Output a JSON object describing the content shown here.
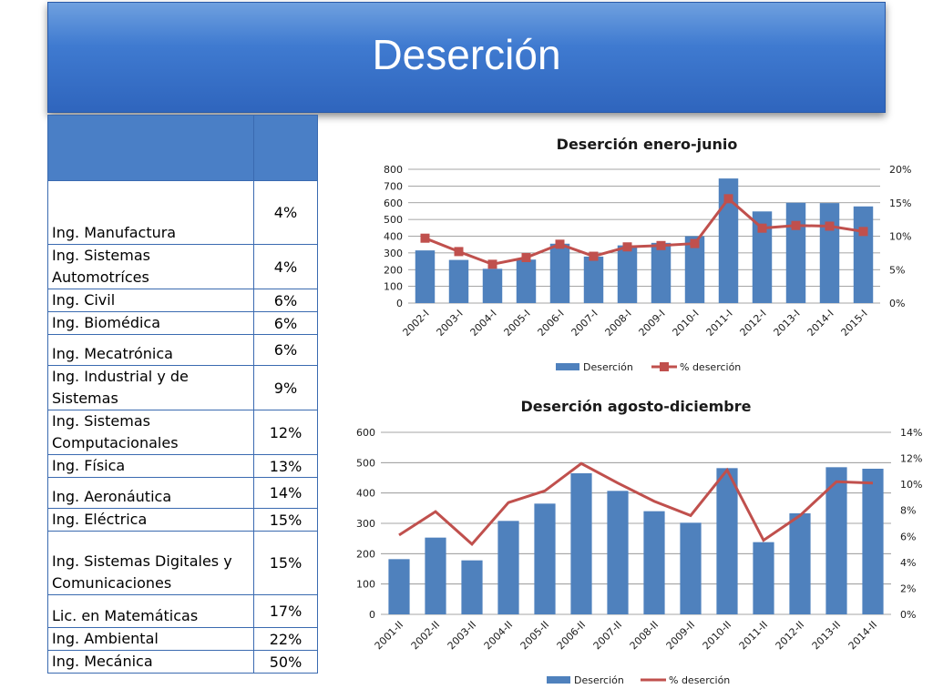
{
  "slide": {
    "title": "Deserción"
  },
  "table": {
    "header": [
      "",
      ""
    ],
    "rows": [
      {
        "name": "Ing. Manufactura",
        "pct": "4%"
      },
      {
        "name": "Ing. Sistemas Automotríces",
        "pct": "4%"
      },
      {
        "name": "Ing. Civil",
        "pct": "6%"
      },
      {
        "name": "Ing. Biomédica",
        "pct": "6%"
      },
      {
        "name": "Ing. Mecatrónica",
        "pct": "6%"
      },
      {
        "name": "Ing. Industrial y de Sistemas",
        "pct": "9%"
      },
      {
        "name": "Ing. Sistemas Computacionales",
        "pct": "12%"
      },
      {
        "name": "Ing. Física",
        "pct": "13%"
      },
      {
        "name": "Ing. Aeronáutica",
        "pct": "14%"
      },
      {
        "name": "Ing. Eléctrica",
        "pct": "15%"
      },
      {
        "name": "Ing. Sistemas Digitales y Comunicaciones",
        "pct": "15%"
      },
      {
        "name": "Lic. en Matemáticas",
        "pct": "17%"
      },
      {
        "name": "Ing.  Ambiental",
        "pct": "22%"
      },
      {
        "name": "Ing. Mecánica",
        "pct": "50%"
      }
    ]
  },
  "colors": {
    "bar": "#4f81bd",
    "line": "#c0504d",
    "header_fill": "#4a7fc6",
    "border": "#3a6ab0",
    "banner": "#3f7ad0"
  },
  "chart_data": [
    {
      "type": "bar",
      "title": "Deserción enero-junio",
      "categories": [
        "2002-I",
        "2003-I",
        "2004-I",
        "2005-I",
        "2006-I",
        "2007-I",
        "2008-I",
        "2009-I",
        "2010-I",
        "2011-I",
        "2012-I",
        "2013-I",
        "2014-I",
        "2015-I"
      ],
      "series": [
        {
          "name": "Deserción",
          "type": "bar",
          "axis": "left",
          "values": [
            315,
            258,
            205,
            260,
            355,
            278,
            345,
            360,
            400,
            745,
            548,
            600,
            598,
            578
          ]
        },
        {
          "name": "% deserción",
          "type": "line",
          "axis": "right",
          "marker": "square",
          "values": [
            9.7,
            7.7,
            5.8,
            6.8,
            8.8,
            7.0,
            8.4,
            8.6,
            8.9,
            15.6,
            11.2,
            11.6,
            11.5,
            10.7
          ]
        }
      ],
      "ylim_left": [
        0,
        800
      ],
      "yticks_left": [
        "0",
        "100",
        "200",
        "300",
        "400",
        "500",
        "600",
        "700",
        "800"
      ],
      "ylim_right": [
        0,
        20
      ],
      "yticks_right": [
        "0%",
        "5%",
        "10%",
        "15%",
        "20%"
      ],
      "grid": true,
      "legend": "bottom"
    },
    {
      "type": "bar",
      "title": "Deserción agosto-diciembre",
      "categories": [
        "2001-II",
        "2002-II",
        "2003-II",
        "2004-II",
        "2005-II",
        "2006-II",
        "2007-II",
        "2008-II",
        "2009-II",
        "2010-II",
        "2011-II",
        "2012-II",
        "2013-II",
        "2014-II"
      ],
      "series": [
        {
          "name": "Deserción",
          "type": "bar",
          "axis": "left",
          "values": [
            182,
            253,
            178,
            308,
            365,
            465,
            407,
            340,
            302,
            482,
            238,
            333,
            485,
            480
          ]
        },
        {
          "name": "% deserción",
          "type": "line",
          "axis": "right",
          "marker": "none",
          "values": [
            6.1,
            7.9,
            5.4,
            8.6,
            9.5,
            11.6,
            10.1,
            8.7,
            7.6,
            11.1,
            5.7,
            7.6,
            10.2,
            10.1
          ]
        }
      ],
      "ylim_left": [
        0,
        600
      ],
      "yticks_left": [
        "0",
        "100",
        "200",
        "300",
        "400",
        "500",
        "600"
      ],
      "ylim_right": [
        0,
        14
      ],
      "yticks_right": [
        "0%",
        "2%",
        "4%",
        "6%",
        "8%",
        "10%",
        "12%",
        "14%"
      ],
      "grid": true,
      "legend": "bottom"
    }
  ]
}
